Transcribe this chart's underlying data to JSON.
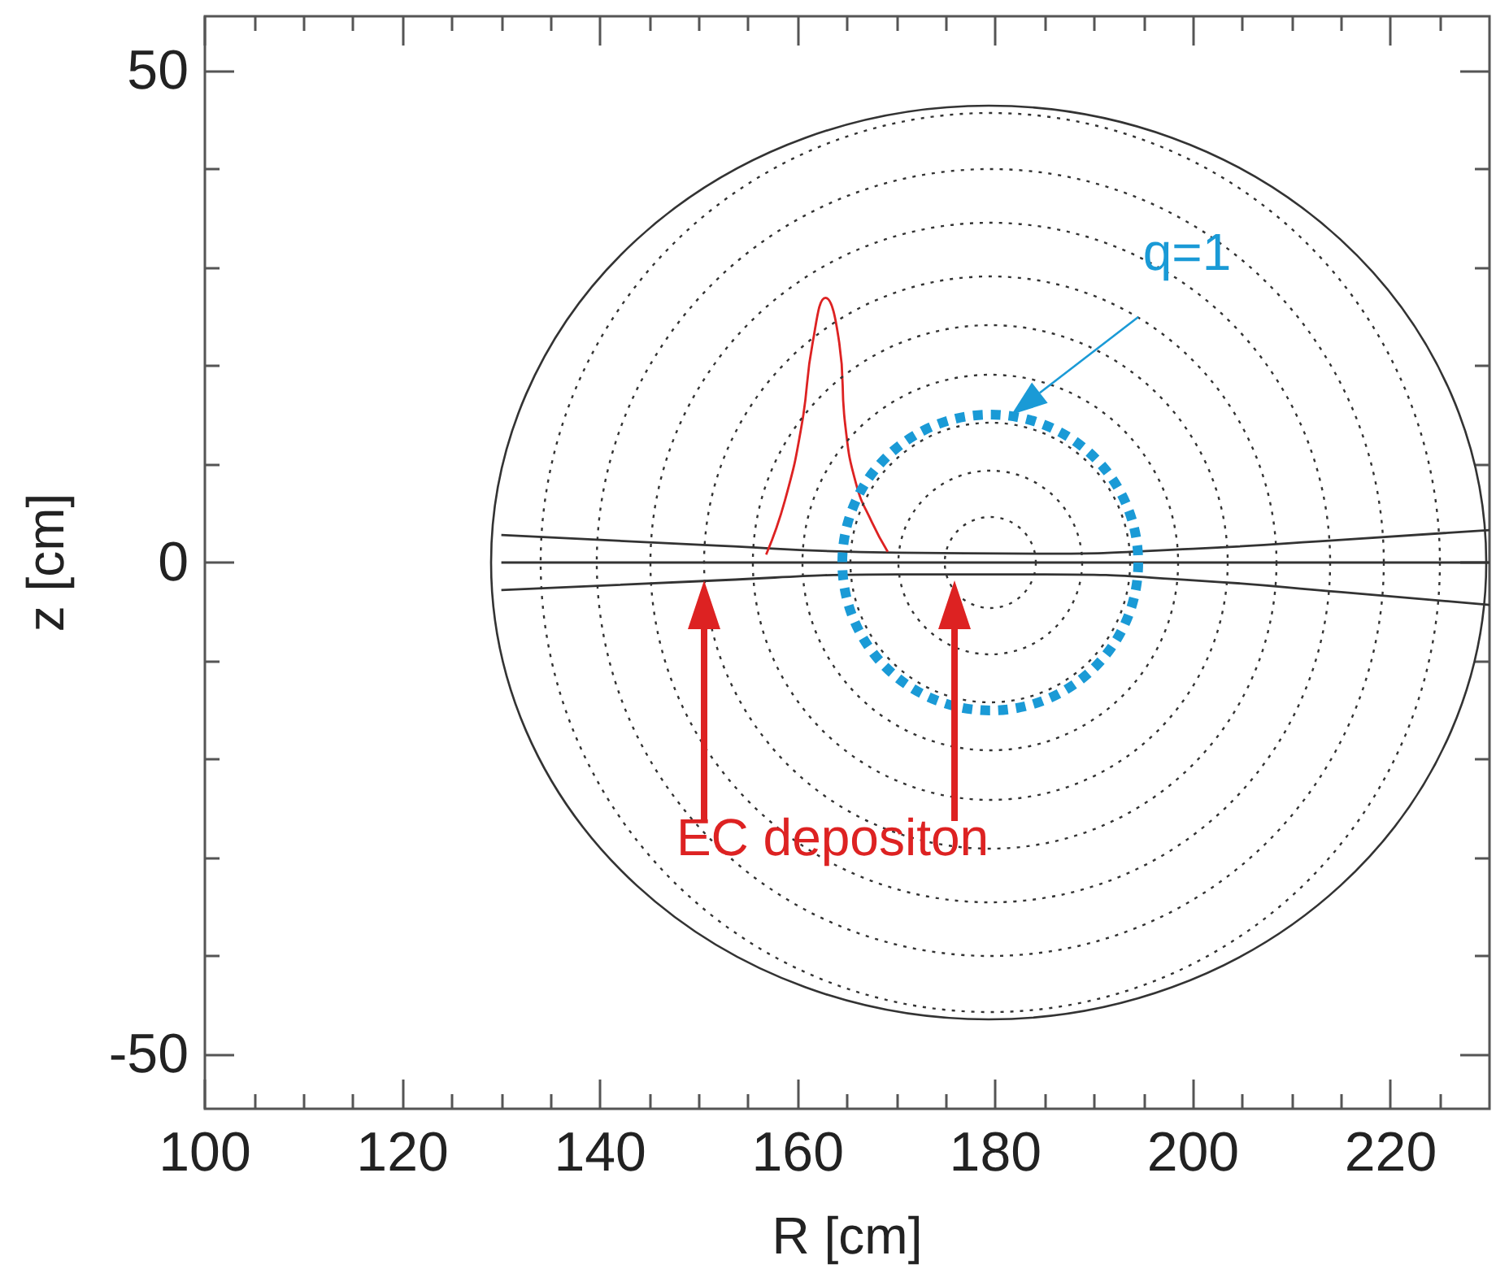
{
  "chart_data": {
    "type": "line",
    "xlabel": "R [cm]",
    "ylabel": "z [cm]",
    "marker": "none",
    "xlim": [
      100,
      230
    ],
    "ylim": [
      -55.5,
      55.5
    ],
    "xticks": [
      100,
      {
        "value": 105,
        "label": null
      },
      {
        "value": 110,
        "label": null
      },
      {
        "value": 115,
        "label": null
      },
      120,
      {
        "value": 125,
        "label": null
      },
      {
        "value": 130,
        "label": null
      },
      {
        "value": 135,
        "label": null
      },
      140,
      {
        "value": 145,
        "label": null
      },
      {
        "value": 150,
        "label": null
      },
      {
        "value": 155,
        "label": null
      },
      160,
      {
        "value": 165,
        "label": null
      },
      {
        "value": 170,
        "label": null
      },
      {
        "value": 175,
        "label": null
      },
      180,
      {
        "value": 185,
        "label": null
      },
      {
        "value": 190,
        "label": null
      },
      {
        "value": 195,
        "label": null
      },
      200,
      {
        "value": 205,
        "label": null
      },
      {
        "value": 210,
        "label": null
      },
      {
        "value": 215,
        "label": null
      },
      220,
      {
        "value": 225,
        "label": null
      }
    ],
    "yticks": [
      -50,
      {
        "value": -40,
        "label": null
      },
      {
        "value": -30,
        "label": null
      },
      {
        "value": -20,
        "label": null
      },
      {
        "value": -10,
        "label": null
      },
      0,
      {
        "value": 10,
        "label": null
      },
      {
        "value": 20,
        "label": null
      },
      {
        "value": 30,
        "label": null
      },
      {
        "value": 40,
        "label": null
      },
      50
    ],
    "series": [
      {
        "color": "#333333",
        "line_style": "solid",
        "x": [
          130,
          230
        ],
        "values": [
          0,
          0
        ]
      },
      {
        "color": "#333333",
        "line_style": "solid",
        "x": [
          130,
          150,
          170,
          185,
          200,
          215,
          230
        ],
        "values": [
          2.8,
          1.8,
          1.0,
          0.9,
          1.4,
          2.3,
          3.3
        ]
      },
      {
        "color": "#333333",
        "line_style": "solid",
        "x": [
          130,
          150,
          170,
          185,
          200,
          215,
          230
        ],
        "values": [
          -2.8,
          -1.9,
          -1.2,
          -1.2,
          -1.8,
          -3.0,
          -4.3
        ]
      },
      {
        "color": "#dd2222",
        "line_style": "solid",
        "x": [
          156.8,
          158.7,
          160.4,
          161.5,
          162.8,
          164.2,
          164.8,
          165.9,
          167.5,
          169.1
        ],
        "values": [
          0.8,
          6.3,
          14,
          22.3,
          26.9,
          22.3,
          14,
          8,
          4.1,
          1.1
        ]
      }
    ],
    "annotations": [
      "q=1",
      "EC depositon"
    ]
  }
}
